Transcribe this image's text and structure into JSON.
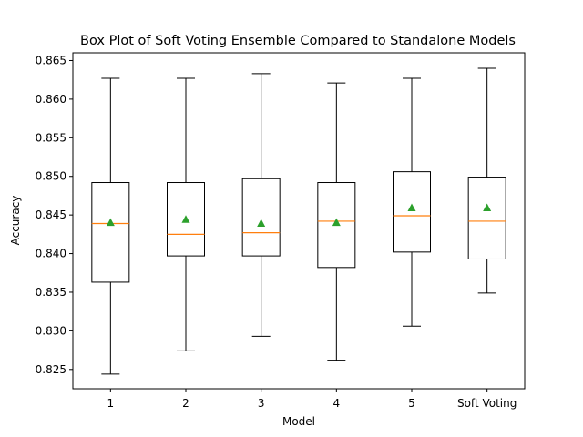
{
  "chart_data": {
    "type": "box",
    "title": "Box Plot of Soft Voting Ensemble Compared to Standalone Models",
    "xlabel": "Model",
    "ylabel": "Accuracy",
    "categories": [
      "1",
      "2",
      "3",
      "4",
      "5",
      "Soft Voting"
    ],
    "ylim": [
      0.8225,
      0.866
    ],
    "yticks": [
      0.825,
      0.83,
      0.835,
      0.84,
      0.845,
      0.85,
      0.855,
      0.86,
      0.865
    ],
    "ytick_labels": [
      "0.825",
      "0.830",
      "0.835",
      "0.840",
      "0.845",
      "0.850",
      "0.855",
      "0.860",
      "0.865"
    ],
    "boxes": [
      {
        "category": "1",
        "whisker_low": 0.8244,
        "q1": 0.8363,
        "median": 0.8439,
        "q3": 0.8492,
        "whisker_high": 0.8627,
        "mean": 0.844
      },
      {
        "category": "2",
        "whisker_low": 0.8274,
        "q1": 0.8397,
        "median": 0.8425,
        "q3": 0.8492,
        "whisker_high": 0.8627,
        "mean": 0.8444
      },
      {
        "category": "3",
        "whisker_low": 0.8293,
        "q1": 0.8397,
        "median": 0.8427,
        "q3": 0.8497,
        "whisker_high": 0.8633,
        "mean": 0.8439
      },
      {
        "category": "4",
        "whisker_low": 0.8262,
        "q1": 0.8382,
        "median": 0.8442,
        "q3": 0.8492,
        "whisker_high": 0.8621,
        "mean": 0.844
      },
      {
        "category": "5",
        "whisker_low": 0.8306,
        "q1": 0.8402,
        "median": 0.8449,
        "q3": 0.8506,
        "whisker_high": 0.8627,
        "mean": 0.8459
      },
      {
        "category": "Soft Voting",
        "whisker_low": 0.8349,
        "q1": 0.8393,
        "median": 0.8442,
        "q3": 0.8499,
        "whisker_high": 0.864,
        "mean": 0.8459
      }
    ],
    "colors": {
      "box": "#000000",
      "median": "#ff7f0e",
      "mean": "#2ca02c",
      "background": "#ffffff"
    },
    "grid": false,
    "legend": false
  }
}
